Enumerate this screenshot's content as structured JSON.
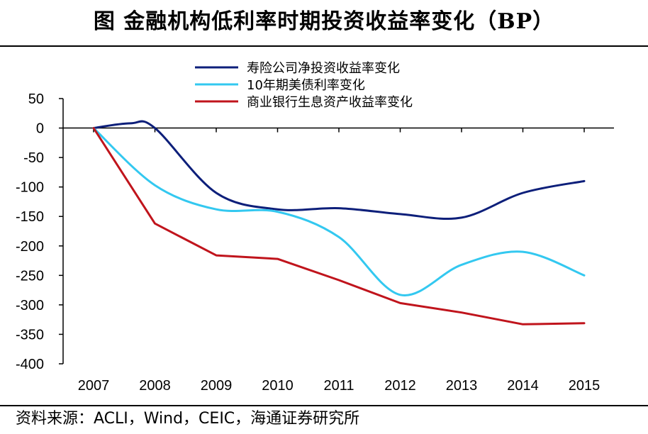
{
  "title": "图    金融机构低利率时期投资收益率变化（BP）",
  "source": "资料来源：ACLI，Wind，CEIC，海通证券研究所",
  "chart_data": {
    "type": "line",
    "title": "金融机构低利率时期投资收益率变化（BP）",
    "xlabel": "",
    "ylabel": "",
    "categories": [
      "2007",
      "2008",
      "2009",
      "2010",
      "2011",
      "2012",
      "2013",
      "2014",
      "2015"
    ],
    "yticks": [
      50,
      0,
      -50,
      -100,
      -150,
      -200,
      -250,
      -300,
      -350,
      -400
    ],
    "ylim": [
      -400,
      50
    ],
    "legend_position": "top-center",
    "series": [
      {
        "name": "寿险公司净投资收益率变化",
        "color": "#0d1f7a",
        "points": [
          [
            0,
            0
          ],
          [
            0.6,
            8
          ],
          [
            1,
            0
          ],
          [
            2,
            -110
          ],
          [
            3,
            -138
          ],
          [
            4,
            -136
          ],
          [
            5,
            -146
          ],
          [
            6,
            -152
          ],
          [
            7,
            -110
          ],
          [
            8,
            -90
          ]
        ]
      },
      {
        "name": "10年期美债利率变化",
        "color": "#33c8f0",
        "points": [
          [
            0,
            0
          ],
          [
            1,
            -97
          ],
          [
            2,
            -138
          ],
          [
            3,
            -142
          ],
          [
            4,
            -185
          ],
          [
            5,
            -283
          ],
          [
            6,
            -232
          ],
          [
            7,
            -210
          ],
          [
            8,
            -250
          ]
        ]
      },
      {
        "name": "商业银行生息资产收益率变化",
        "color": "#c0141c",
        "points": [
          [
            0,
            0
          ],
          [
            1,
            -162
          ],
          [
            2,
            -216
          ],
          [
            3,
            -222
          ],
          [
            4,
            -258
          ],
          [
            5,
            -297
          ],
          [
            6,
            -313
          ],
          [
            7,
            -333
          ],
          [
            8,
            -331
          ]
        ]
      }
    ]
  }
}
